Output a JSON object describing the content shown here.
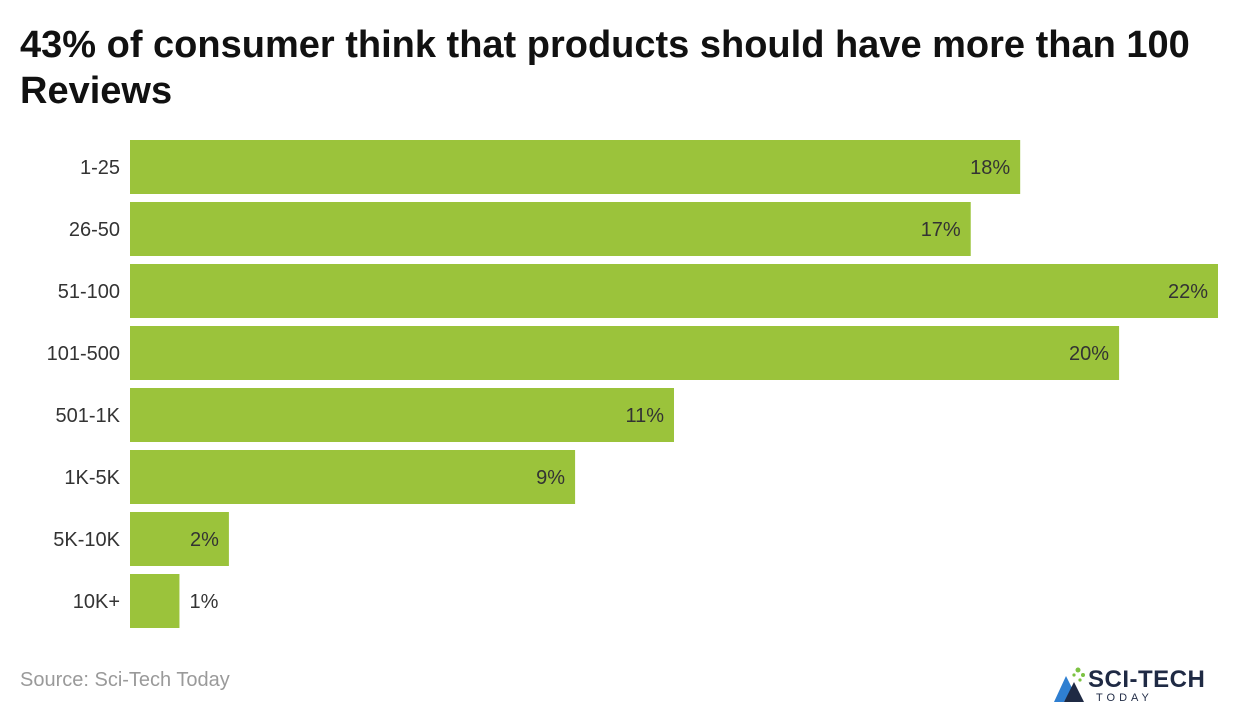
{
  "title": "43% of consumer think that products should have more than 100 Reviews",
  "source": "Source: Sci-Tech Today",
  "logo": {
    "name": "SCI-TECH",
    "sub": "TODAY"
  },
  "colors": {
    "bar": "#9bc33b",
    "text": "#333333"
  },
  "chart_data": {
    "type": "bar",
    "orientation": "horizontal",
    "categories": [
      "1-25",
      "26-50",
      "51-100",
      "101-500",
      "501-1K",
      "1K-5K",
      "5K-10K",
      "10K+"
    ],
    "values": [
      18,
      17,
      22,
      20,
      11,
      9,
      2,
      1
    ],
    "value_labels": [
      "18%",
      "17%",
      "22%",
      "20%",
      "11%",
      "9%",
      "2%",
      "1%"
    ],
    "xlim": [
      0,
      22
    ],
    "grid": false,
    "legend": "none"
  }
}
